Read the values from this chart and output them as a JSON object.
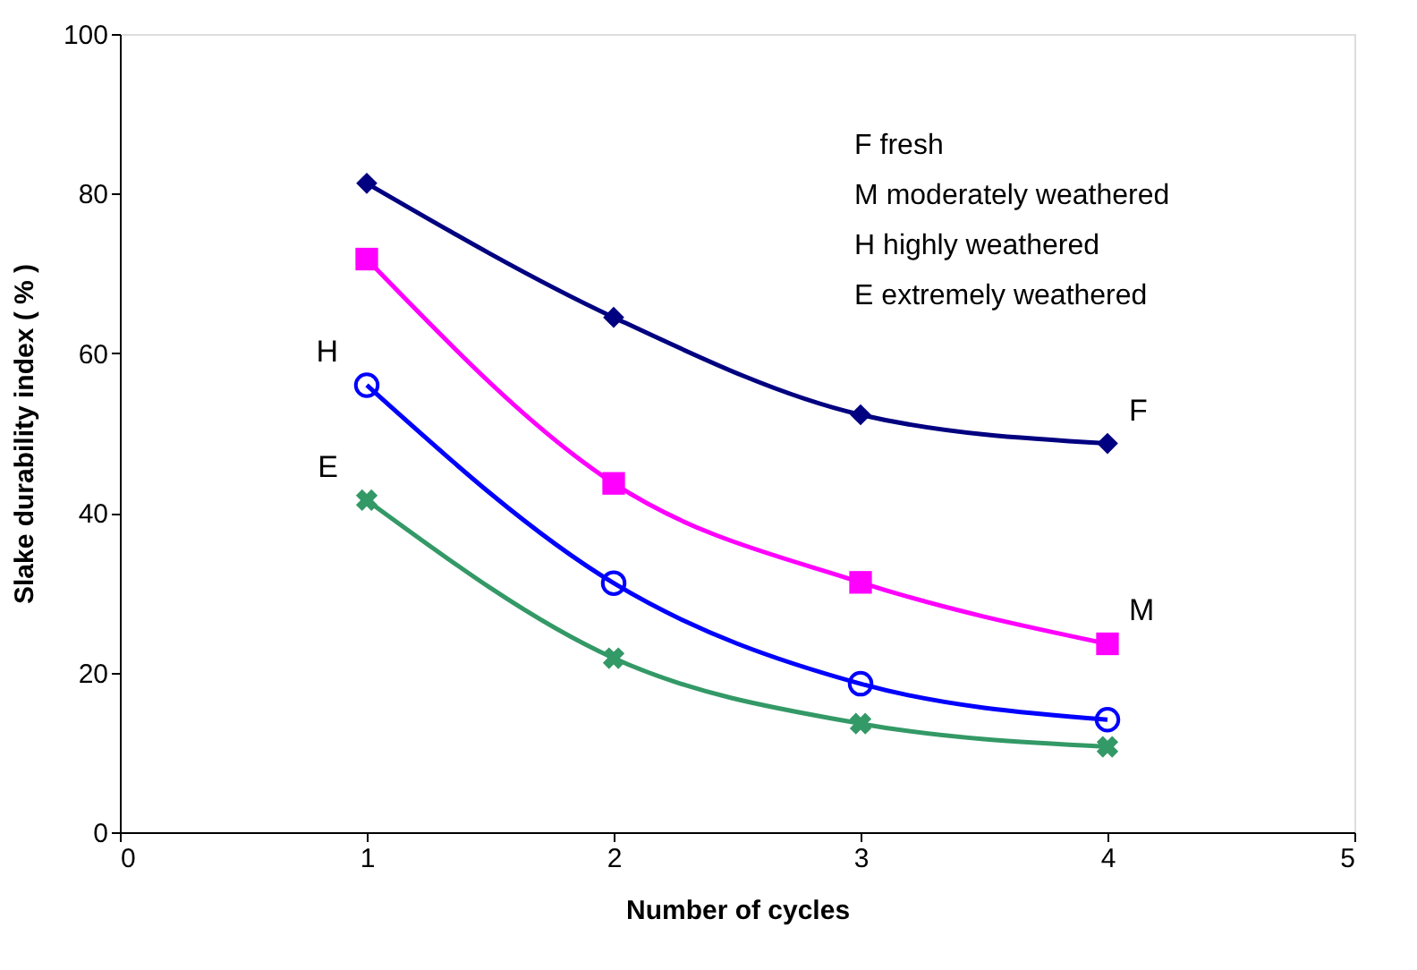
{
  "chart_data": {
    "type": "line",
    "xlabel": "Number of cycles",
    "ylabel": "Slake durability index ( % )",
    "x": [
      1,
      2,
      3,
      4
    ],
    "series": [
      {
        "name": "F",
        "color": "#000080",
        "marker": "diamond",
        "values": [
          81.3,
          64.5,
          52.3,
          48.7
        ]
      },
      {
        "name": "M",
        "color": "#ff00ff",
        "marker": "square",
        "values": [
          71.8,
          43.7,
          31.3,
          23.6
        ]
      },
      {
        "name": "H",
        "color": "#0000ff",
        "marker": "circle",
        "values": [
          56.0,
          31.2,
          18.6,
          14.1
        ]
      },
      {
        "name": "E",
        "color": "#339966",
        "marker": "cross",
        "values": [
          41.6,
          21.8,
          13.6,
          10.7
        ]
      }
    ],
    "annotations": [
      "F fresh",
      "M moderately weathered",
      "H highly weathered",
      "E extremely weathered"
    ],
    "xlim": [
      0,
      5
    ],
    "xticks": [
      0,
      1,
      2,
      3,
      4,
      5
    ],
    "ylim": [
      0,
      100
    ],
    "yticks": [
      0,
      20,
      40,
      60,
      80,
      100
    ],
    "grid": false
  }
}
